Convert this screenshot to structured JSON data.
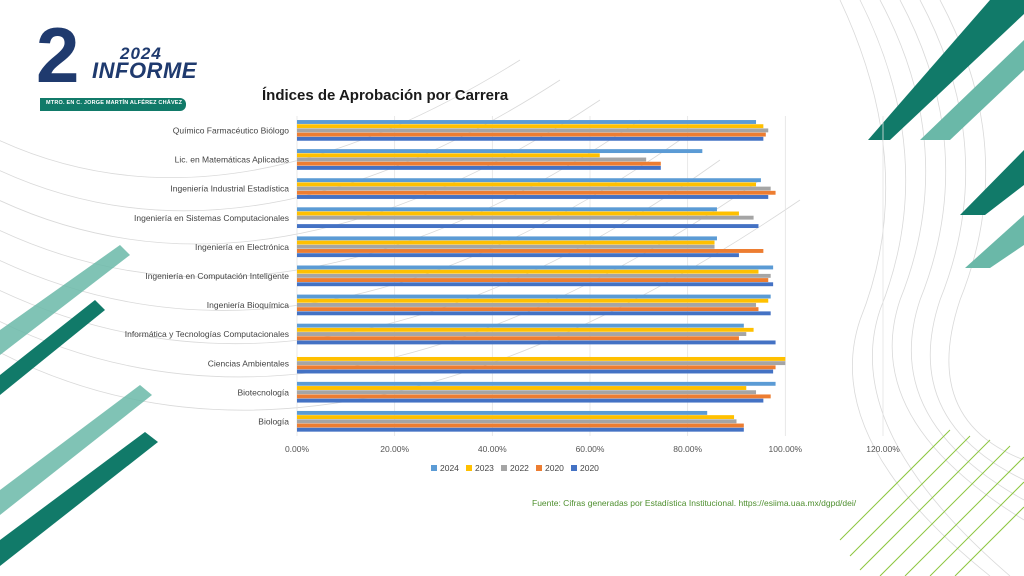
{
  "logo": {
    "number": "2",
    "year": "2024",
    "word": "INFORME",
    "caption": "MTRO. EN C. JORGE MARTÍN ALFÉREZ CHÁVEZ"
  },
  "source_note": "Fuente: Cifras generadas por Estadística Institucional. https://esiima.uaa.mx/dgpd/dei/",
  "colors": {
    "teal_dark": "#117a69",
    "teal_light": "#6ab8a8",
    "logo_blue": "#1f3a6e",
    "green_lines": "#8cc63f"
  },
  "chart_data": {
    "type": "bar",
    "orientation": "horizontal",
    "title": "Índices de Aprobación por Carrera",
    "categories": [
      "Químico Farmacéutico Biólogo",
      "Lic. en Matemáticas Aplicadas",
      "Ingeniería Industrial Estadística",
      "Ingeniería en Sistemas Computacionales",
      "Ingeniería en Electrónica",
      "Ingeniería en Computación Inteligente",
      "Ingeniería Bioquímica",
      "Informática y Tecnologías Computacionales",
      "Ciencias Ambientales",
      "Biotecnología",
      "Biología"
    ],
    "series": [
      {
        "name": "2024",
        "color": "#5b9bd5",
        "values": [
          94,
          83,
          95,
          86,
          86,
          97.5,
          97,
          91.5,
          0,
          98,
          84
        ]
      },
      {
        "name": "2023",
        "color": "#ffc000",
        "values": [
          95.5,
          62,
          94,
          90.5,
          85.5,
          94.5,
          96.5,
          93.5,
          100,
          92,
          89.5
        ]
      },
      {
        "name": "2022",
        "color": "#a5a5a5",
        "values": [
          96.5,
          71.5,
          97,
          93.5,
          85.5,
          97,
          94,
          92,
          100,
          94,
          90
        ]
      },
      {
        "name": "2020",
        "color": "#ed7d31",
        "values": [
          96,
          74.5,
          98,
          0,
          95.5,
          96.5,
          94.5,
          90.5,
          98,
          97,
          91.5
        ]
      },
      {
        "name": "2020",
        "color": "#4472c4",
        "values": [
          95.5,
          74.5,
          96.5,
          94.5,
          90.5,
          97.5,
          97,
          98,
          97.5,
          95.5,
          91.5
        ]
      }
    ],
    "xlim": [
      0,
      120
    ],
    "xticks": [
      "0.00%",
      "20.00%",
      "40.00%",
      "60.00%",
      "80.00%",
      "100.00%",
      "120.00%"
    ],
    "grid": true,
    "legend_position": "bottom"
  }
}
